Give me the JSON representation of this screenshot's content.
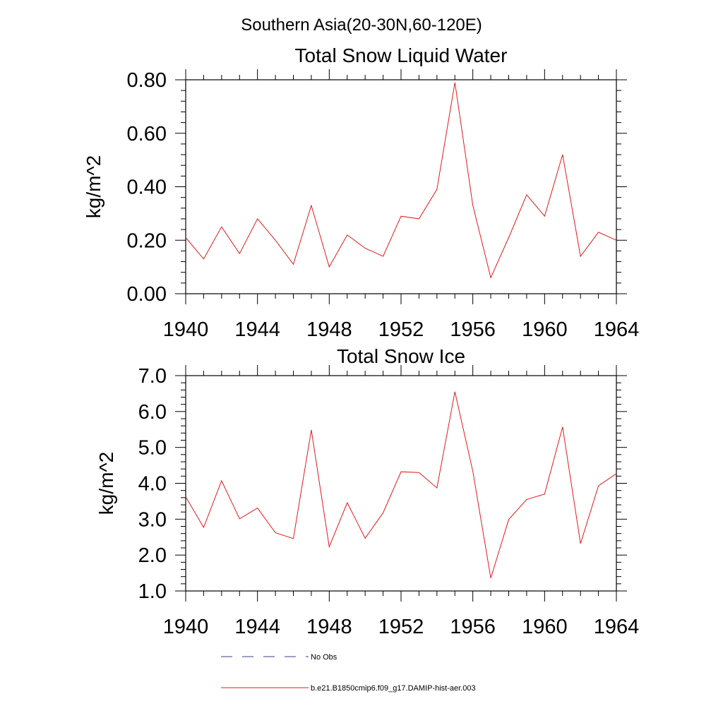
{
  "suptitle": "Southern Asia(20-30N,60-120E)",
  "colors": {
    "series": "#e41a1c",
    "no_obs": "#3b3b8f",
    "axis": "#000000"
  },
  "legend": {
    "items": [
      {
        "label": "No Obs",
        "style": "dashed"
      },
      {
        "label": "b.e21.B1850cmip6.f09_g17.DAMIP-hist-aer.003",
        "style": "solid"
      }
    ]
  },
  "chart_data": [
    {
      "type": "line",
      "title": "Total Snow Liquid Water",
      "ylabel": "kg/m^2",
      "xlabel": "",
      "xlim": [
        1940,
        1964
      ],
      "ylim": [
        0,
        0.8
      ],
      "xticks": [
        1940,
        1944,
        1948,
        1952,
        1956,
        1960,
        1964
      ],
      "xtick_labels": [
        "1940",
        "1944",
        "1948",
        "1952",
        "1956",
        "1960",
        "1964"
      ],
      "yticks": [
        0,
        0.2,
        0.4,
        0.6,
        0.8
      ],
      "ytick_labels": [
        "0.00",
        "0.20",
        "0.40",
        "0.60",
        "0.80"
      ],
      "grid": false,
      "series": [
        {
          "name": "b.e21.B1850cmip6.f09_g17.DAMIP-hist-aer.003",
          "x": [
            1940,
            1941,
            1942,
            1943,
            1944,
            1945,
            1946,
            1947,
            1948,
            1949,
            1950,
            1951,
            1952,
            1953,
            1954,
            1955,
            1956,
            1957,
            1958,
            1959,
            1960,
            1961,
            1962,
            1963,
            1964
          ],
          "values": [
            0.21,
            0.13,
            0.25,
            0.15,
            0.28,
            0.2,
            0.11,
            0.33,
            0.1,
            0.22,
            0.17,
            0.14,
            0.29,
            0.28,
            0.39,
            0.79,
            0.33,
            0.06,
            0.21,
            0.37,
            0.29,
            0.52,
            0.14,
            0.23,
            0.2
          ]
        }
      ]
    },
    {
      "type": "line",
      "title": "Total Snow Ice",
      "ylabel": "kg/m^2",
      "xlabel": "",
      "xlim": [
        1940,
        1964
      ],
      "ylim": [
        1.0,
        7.0
      ],
      "xticks": [
        1940,
        1944,
        1948,
        1952,
        1956,
        1960,
        1964
      ],
      "xtick_labels": [
        "1940",
        "1944",
        "1948",
        "1952",
        "1956",
        "1960",
        "1964"
      ],
      "yticks": [
        1,
        2,
        3,
        4,
        5,
        6,
        7
      ],
      "ytick_labels": [
        "1.0",
        "2.0",
        "3.0",
        "4.0",
        "5.0",
        "6.0",
        "7.0"
      ],
      "grid": false,
      "series": [
        {
          "name": "b.e21.B1850cmip6.f09_g17.DAMIP-hist-aer.003",
          "x": [
            1940,
            1941,
            1942,
            1943,
            1944,
            1945,
            1946,
            1947,
            1948,
            1949,
            1950,
            1951,
            1952,
            1953,
            1954,
            1955,
            1956,
            1957,
            1958,
            1959,
            1960,
            1961,
            1962,
            1963,
            1964
          ],
          "values": [
            3.62,
            2.77,
            4.07,
            3.01,
            3.31,
            2.62,
            2.46,
            5.49,
            2.23,
            3.46,
            2.47,
            3.18,
            4.32,
            4.3,
            3.87,
            6.55,
            4.33,
            1.36,
            2.99,
            3.55,
            3.7,
            5.57,
            2.32,
            3.93,
            4.27
          ]
        }
      ]
    }
  ]
}
